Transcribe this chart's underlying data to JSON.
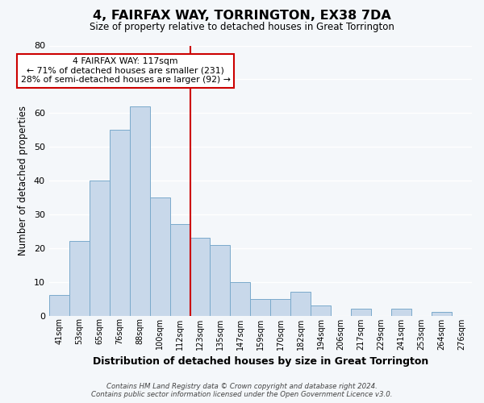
{
  "title": "4, FAIRFAX WAY, TORRINGTON, EX38 7DA",
  "subtitle": "Size of property relative to detached houses in Great Torrington",
  "xlabel": "Distribution of detached houses by size in Great Torrington",
  "ylabel": "Number of detached properties",
  "categories": [
    "41sqm",
    "53sqm",
    "65sqm",
    "76sqm",
    "88sqm",
    "100sqm",
    "112sqm",
    "123sqm",
    "135sqm",
    "147sqm",
    "159sqm",
    "170sqm",
    "182sqm",
    "194sqm",
    "206sqm",
    "217sqm",
    "229sqm",
    "241sqm",
    "253sqm",
    "264sqm",
    "276sqm"
  ],
  "values": [
    6,
    22,
    40,
    55,
    62,
    35,
    27,
    23,
    21,
    10,
    5,
    5,
    7,
    3,
    0,
    2,
    0,
    2,
    0,
    1,
    0
  ],
  "bar_color": "#c8d8ea",
  "bar_edge_color": "#7aaacb",
  "vline_x_index": 6.5,
  "vline_color": "#cc0000",
  "ylim": [
    0,
    80
  ],
  "yticks": [
    0,
    10,
    20,
    30,
    40,
    50,
    60,
    70,
    80
  ],
  "annotation_title": "4 FAIRFAX WAY: 117sqm",
  "annotation_line1": "← 71% of detached houses are smaller (231)",
  "annotation_line2": "28% of semi-detached houses are larger (92) →",
  "annotation_box_facecolor": "#ffffff",
  "annotation_box_edgecolor": "#cc0000",
  "footer_line1": "Contains HM Land Registry data © Crown copyright and database right 2024.",
  "footer_line2": "Contains public sector information licensed under the Open Government Licence v3.0.",
  "background_color": "#f4f7fa",
  "grid_color": "#ffffff"
}
